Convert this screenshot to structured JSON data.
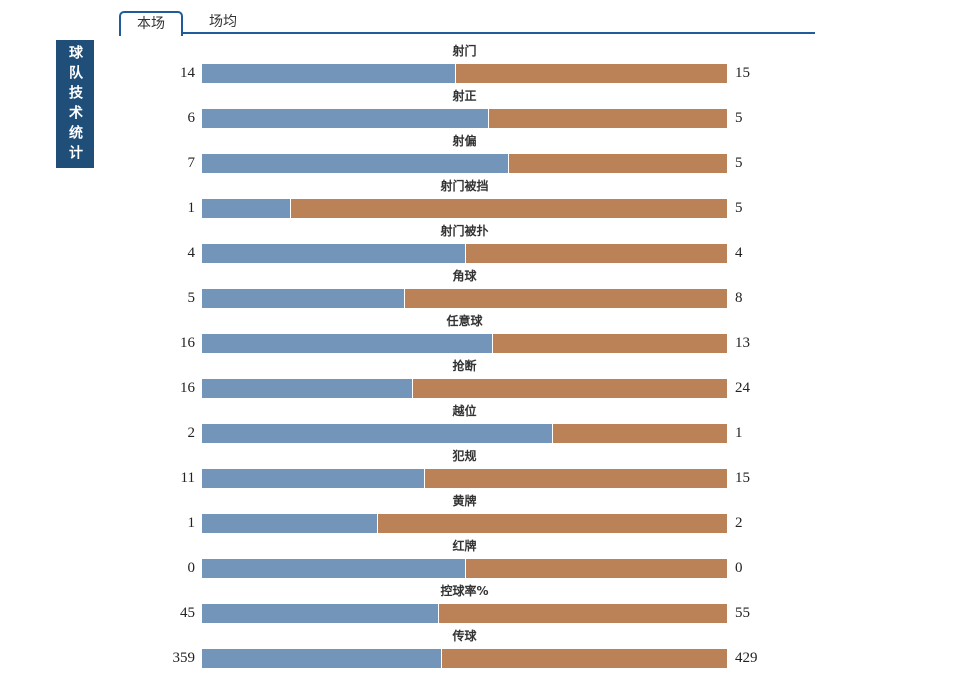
{
  "page": {
    "vertical_title": "球队技术统计",
    "tabs": [
      {
        "label": "本场",
        "active": true
      },
      {
        "label": "场均",
        "active": false
      }
    ]
  },
  "colors": {
    "home_bar": "#7295B9",
    "away_bar": "#BB8258",
    "title_box_bg": "#1F4E79",
    "tab_border": "#1F5C99"
  },
  "chart_data": {
    "type": "bar",
    "subtype": "horizontal-stacked-comparison",
    "title": "球队技术统计",
    "legend_position": "none",
    "grid": false,
    "categories": [
      "射门",
      "射正",
      "射偏",
      "射门被挡",
      "射门被扑",
      "角球",
      "任意球",
      "抢断",
      "越位",
      "犯规",
      "黄牌",
      "红牌",
      "控球率%",
      "传球"
    ],
    "series": [
      {
        "name": "home",
        "color": "#7295B9",
        "values": [
          14,
          6,
          7,
          1,
          4,
          5,
          16,
          16,
          2,
          11,
          1,
          0,
          45,
          359
        ]
      },
      {
        "name": "away",
        "color": "#BB8258",
        "values": [
          15,
          5,
          5,
          5,
          4,
          8,
          13,
          24,
          1,
          15,
          2,
          0,
          55,
          429
        ]
      }
    ],
    "bar_rule": "each row: left(blue)=home value, right(orange)=away value, widths proportional home/(home+away), 50/50 when both zero"
  }
}
